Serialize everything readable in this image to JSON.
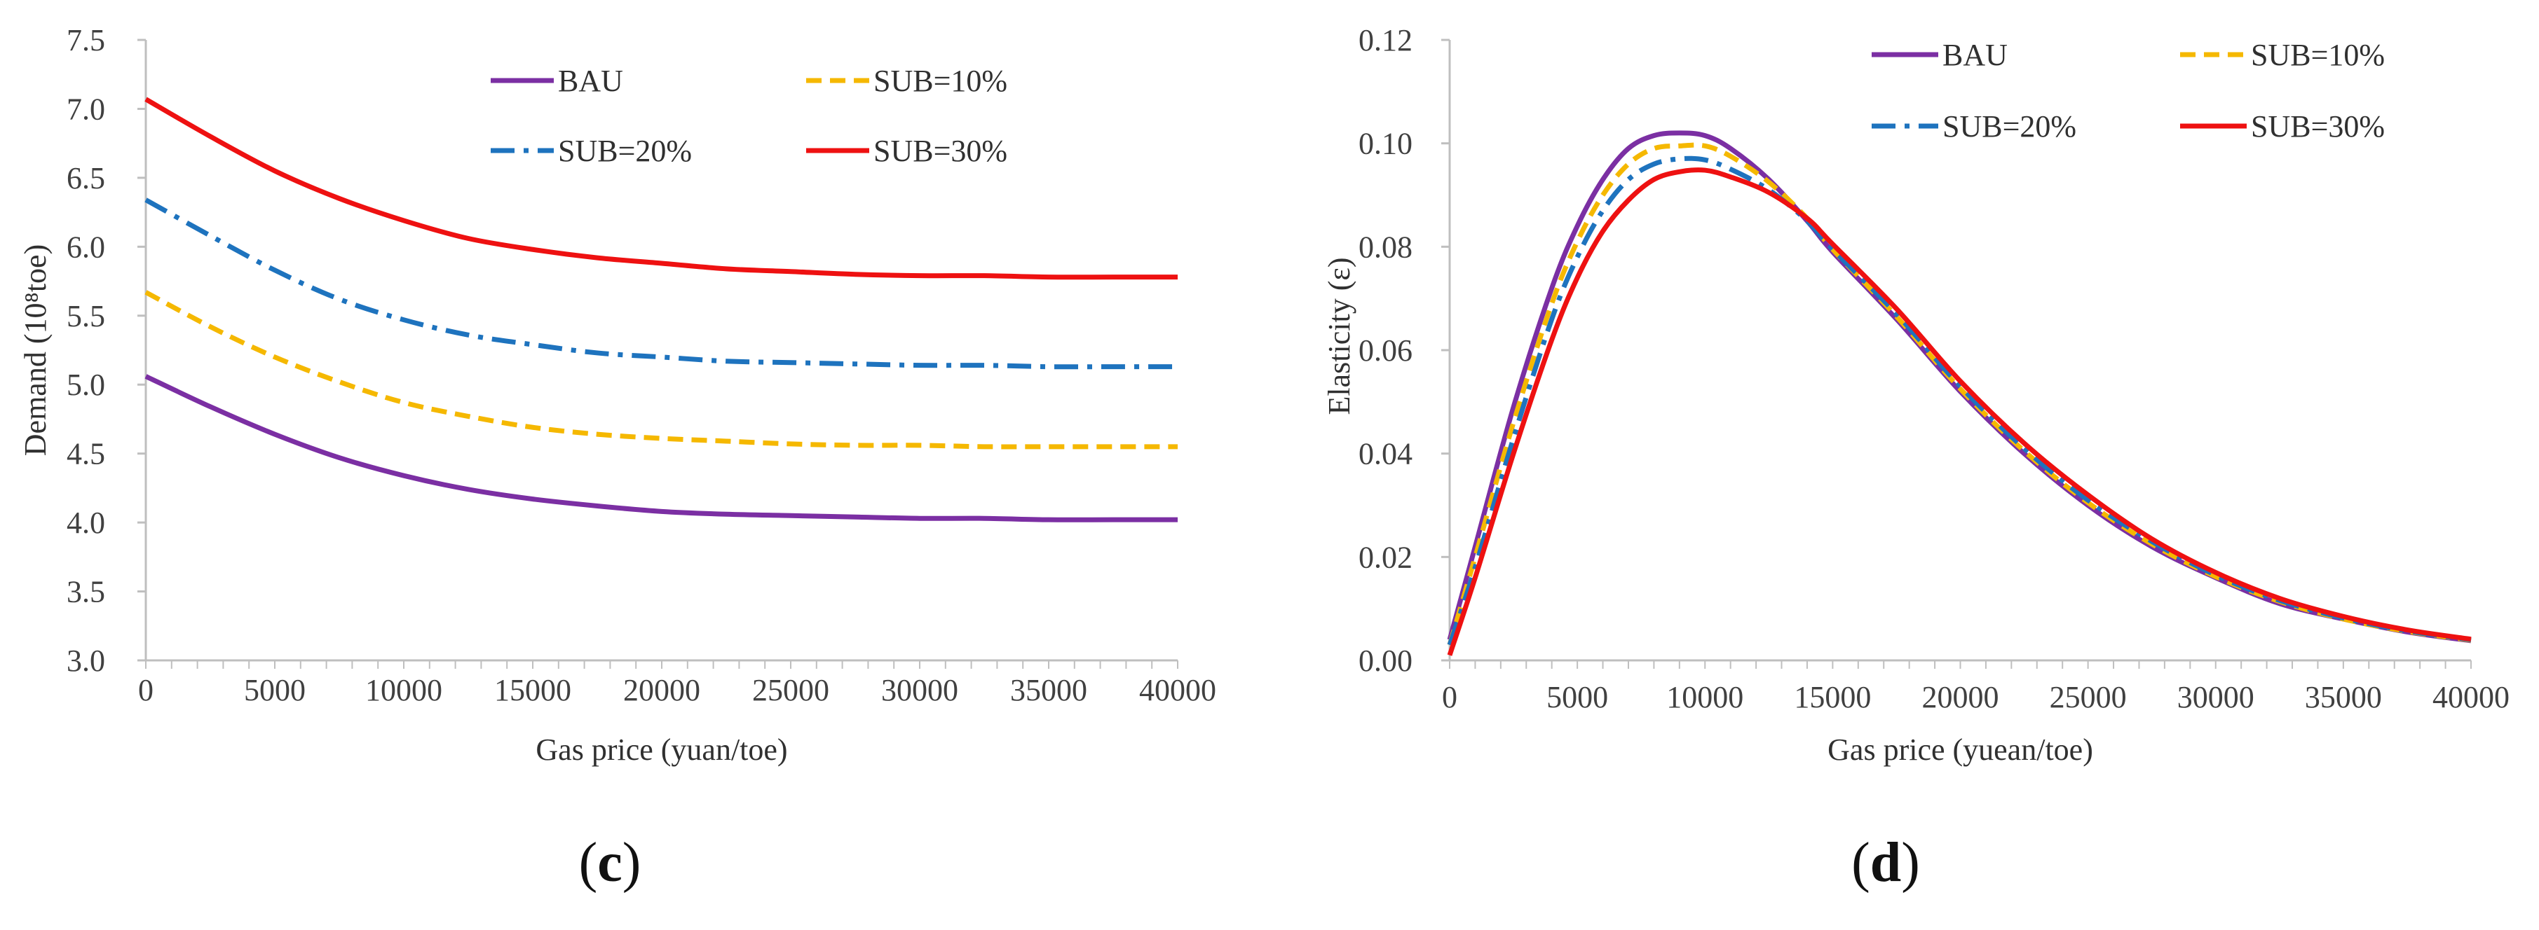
{
  "colors": {
    "BAU": "#7B2FA3",
    "SUB=10%": "#F5B800",
    "SUB=20%": "#1E73BE",
    "SUB=30%": "#EE1111",
    "axis": "#BFBFBF",
    "text": "#404040"
  },
  "chart_data": [
    {
      "type": "line",
      "panel_label": "(c)",
      "panel_letter": "c",
      "xlabel": "Gas price (yuan/toe)",
      "ylabel": "Demand (10⁸toe)",
      "xlim": [
        0,
        40000
      ],
      "ylim": [
        3.0,
        7.5
      ],
      "xticks": [
        0,
        5000,
        10000,
        15000,
        20000,
        25000,
        30000,
        35000,
        40000
      ],
      "yticks": [
        3.0,
        3.5,
        4.0,
        4.5,
        5.0,
        5.5,
        6.0,
        6.5,
        7.0,
        7.5
      ],
      "ytick_decimals": 1,
      "grid": false,
      "legend": "top-right, two columns",
      "x": [
        0,
        2500,
        5000,
        7500,
        10000,
        12500,
        15000,
        17500,
        20000,
        22500,
        25000,
        27500,
        30000,
        32500,
        35000,
        37500,
        40000
      ],
      "series": [
        {
          "name": "BAU",
          "style": "solid",
          "values": [
            5.06,
            4.84,
            4.64,
            4.47,
            4.34,
            4.24,
            4.17,
            4.12,
            4.08,
            4.06,
            4.05,
            4.04,
            4.03,
            4.03,
            4.02,
            4.02,
            4.02
          ]
        },
        {
          "name": "SUB=10%",
          "style": "dashed",
          "values": [
            5.67,
            5.42,
            5.2,
            5.02,
            4.87,
            4.77,
            4.69,
            4.64,
            4.61,
            4.59,
            4.57,
            4.56,
            4.56,
            4.55,
            4.55,
            4.55,
            4.55
          ]
        },
        {
          "name": "SUB=20%",
          "style": "dashdot",
          "values": [
            6.34,
            6.08,
            5.83,
            5.62,
            5.47,
            5.36,
            5.29,
            5.23,
            5.2,
            5.17,
            5.16,
            5.15,
            5.14,
            5.14,
            5.13,
            5.13,
            5.13
          ]
        },
        {
          "name": "SUB=30%",
          "style": "solid",
          "values": [
            7.07,
            6.8,
            6.55,
            6.35,
            6.19,
            6.06,
            5.98,
            5.92,
            5.88,
            5.84,
            5.82,
            5.8,
            5.79,
            5.79,
            5.78,
            5.78,
            5.78
          ]
        }
      ]
    },
    {
      "type": "line",
      "panel_label": "(d)",
      "panel_letter": "d",
      "xlabel": "Gas price (yuean/toe)",
      "ylabel": "Elasticity (ε)",
      "xlim": [
        0,
        40000
      ],
      "ylim": [
        0.0,
        0.12
      ],
      "xticks": [
        0,
        5000,
        10000,
        15000,
        20000,
        25000,
        30000,
        35000,
        40000
      ],
      "yticks": [
        0.0,
        0.02,
        0.04,
        0.06,
        0.08,
        0.1,
        0.12
      ],
      "ytick_decimals": 2,
      "grid": false,
      "legend": "top-right, two columns",
      "x": [
        0,
        1000,
        2500,
        4000,
        5000,
        6000,
        7000,
        8000,
        9000,
        10000,
        11000,
        12500,
        14000,
        15000,
        17500,
        20000,
        22500,
        25000,
        27500,
        30000,
        32500,
        35000,
        37500,
        40000
      ],
      "series": [
        {
          "name": "BAU",
          "style": "solid",
          "values": [
            0.004,
            0.022,
            0.049,
            0.072,
            0.084,
            0.093,
            0.099,
            0.1015,
            0.102,
            0.1015,
            0.099,
            0.093,
            0.085,
            0.079,
            0.066,
            0.052,
            0.04,
            0.03,
            0.022,
            0.016,
            0.011,
            0.008,
            0.0055,
            0.0038
          ]
        },
        {
          "name": "SUB=10%",
          "style": "dashed",
          "values": [
            0.003,
            0.02,
            0.046,
            0.069,
            0.081,
            0.09,
            0.096,
            0.099,
            0.0995,
            0.0995,
            0.0975,
            0.0925,
            0.0855,
            0.0795,
            0.0665,
            0.0525,
            0.0405,
            0.0305,
            0.0225,
            0.0162,
            0.0114,
            0.008,
            0.0056,
            0.0039
          ]
        },
        {
          "name": "SUB=20%",
          "style": "dashdot",
          "values": [
            0.003,
            0.018,
            0.043,
            0.066,
            0.078,
            0.087,
            0.093,
            0.096,
            0.097,
            0.0968,
            0.095,
            0.091,
            0.085,
            0.0795,
            0.067,
            0.053,
            0.041,
            0.031,
            0.023,
            0.0165,
            0.0116,
            0.0082,
            0.0057,
            0.004
          ]
        },
        {
          "name": "SUB=30%",
          "style": "solid",
          "values": [
            0.001,
            0.016,
            0.04,
            0.062,
            0.074,
            0.083,
            0.089,
            0.093,
            0.0945,
            0.0948,
            0.0935,
            0.0905,
            0.0855,
            0.0805,
            0.068,
            0.054,
            0.042,
            0.032,
            0.0235,
            0.017,
            0.012,
            0.0085,
            0.0059,
            0.0041
          ]
        }
      ]
    }
  ]
}
